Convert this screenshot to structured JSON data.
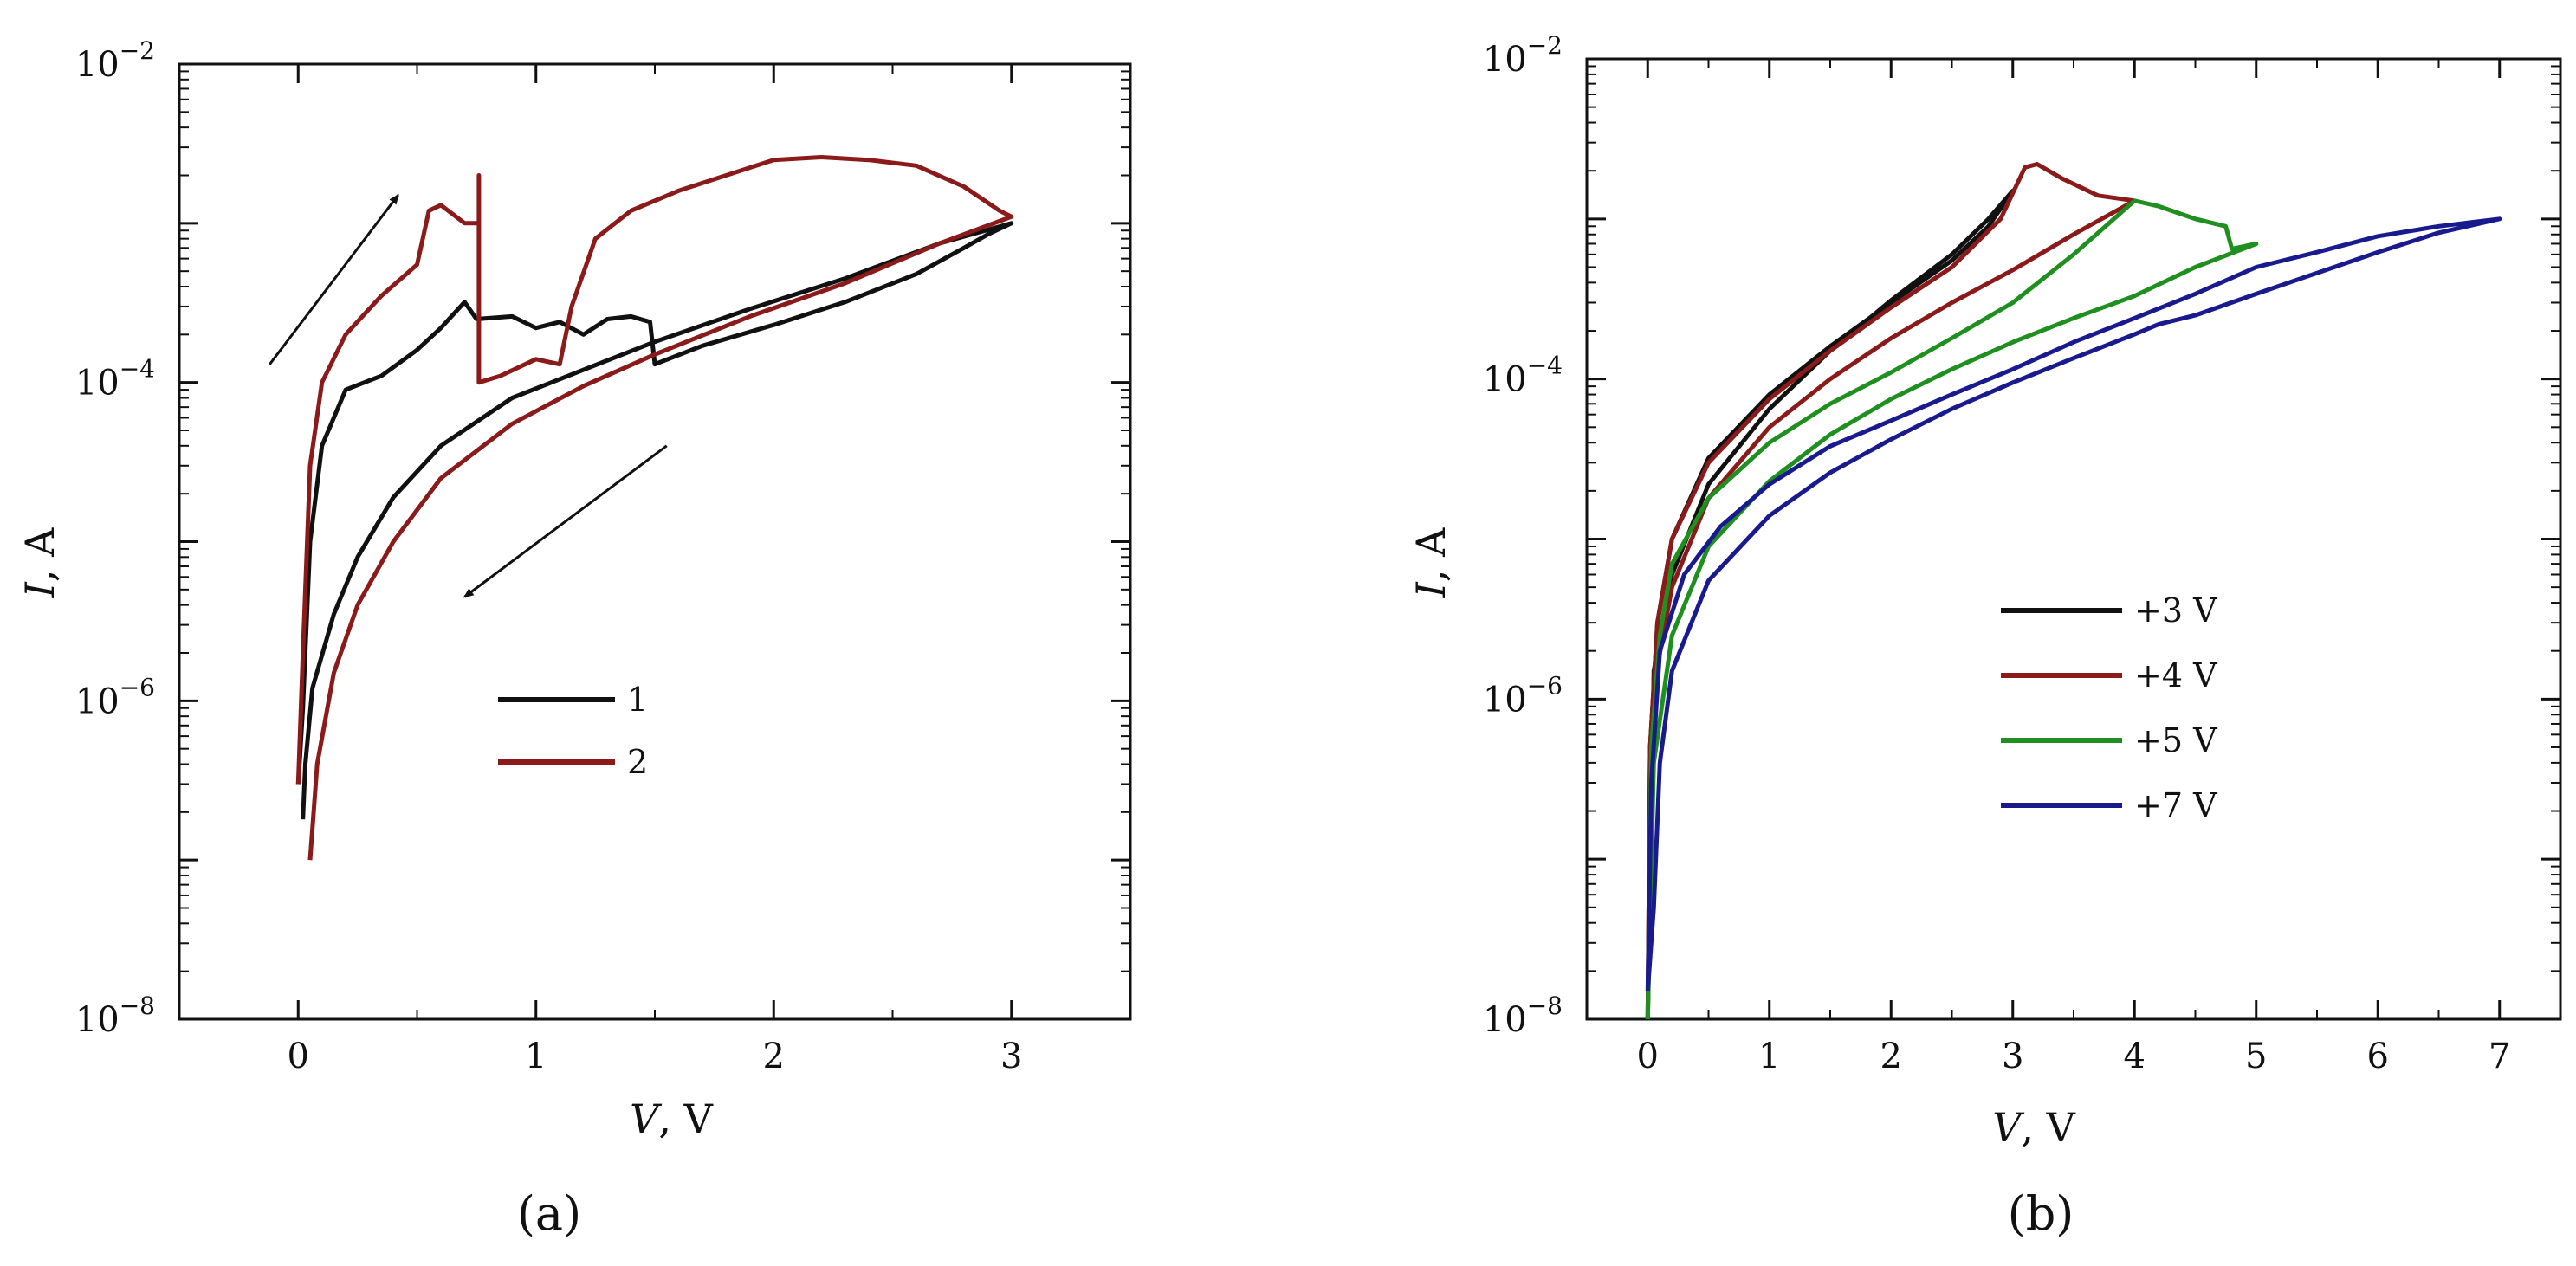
{
  "chart_data": [
    {
      "panel": "a",
      "type": "line",
      "log_y": true,
      "caption": "(a)",
      "xlabel_var": "V",
      "xlabel_unit": ", V",
      "ylabel_var": "I",
      "ylabel_unit": ", A",
      "xlim": [
        -0.5,
        3.5
      ],
      "ylim": [
        1e-08,
        0.01
      ],
      "xticks": [
        0,
        1,
        2,
        3
      ],
      "xtick_labels": [
        "0",
        "1",
        "2",
        "3"
      ],
      "ytick_labels": [
        {
          "value": 1e-08,
          "base": "10",
          "exp": "−8"
        },
        {
          "value": 1e-06,
          "base": "10",
          "exp": "−6"
        },
        {
          "value": 0.0001,
          "base": "10",
          "exp": "−4"
        },
        {
          "value": 0.01,
          "base": "10",
          "exp": "−2"
        }
      ],
      "series": [
        {
          "name": "1",
          "color": "#111111",
          "points": [
            [
              0.0,
              3e-07
            ],
            [
              0.02,
              9e-07
            ],
            [
              0.05,
              1e-05
            ],
            [
              0.1,
              4e-05
            ],
            [
              0.2,
              9e-05
            ],
            [
              0.35,
              0.00011
            ],
            [
              0.5,
              0.00016
            ],
            [
              0.6,
              0.00022
            ],
            [
              0.7,
              0.00032
            ],
            [
              0.75,
              0.00025
            ],
            [
              0.9,
              0.00026
            ],
            [
              1.0,
              0.00022
            ],
            [
              1.1,
              0.00024
            ],
            [
              1.2,
              0.0002
            ],
            [
              1.3,
              0.00025
            ],
            [
              1.4,
              0.00026
            ],
            [
              1.48,
              0.00024
            ],
            [
              1.5,
              0.00013
            ],
            [
              1.7,
              0.00017
            ],
            [
              2.0,
              0.00023
            ],
            [
              2.3,
              0.00032
            ],
            [
              2.6,
              0.00048
            ],
            [
              2.8,
              0.0007
            ],
            [
              2.9,
              0.00085
            ],
            [
              3.0,
              0.001
            ],
            [
              2.7,
              0.00075
            ],
            [
              2.3,
              0.00045
            ],
            [
              1.9,
              0.00029
            ],
            [
              1.5,
              0.00018
            ],
            [
              1.2,
              0.00012
            ],
            [
              0.9,
              8e-05
            ],
            [
              0.6,
              4e-05
            ],
            [
              0.4,
              1.9e-05
            ],
            [
              0.25,
              8e-06
            ],
            [
              0.15,
              3.5e-06
            ],
            [
              0.06,
              1.2e-06
            ],
            [
              0.03,
              4e-07
            ],
            [
              0.02,
              1.8e-07
            ]
          ]
        },
        {
          "name": "2",
          "color": "#8b1a1a",
          "points": [
            [
              0.0,
              3e-07
            ],
            [
              0.02,
              2e-06
            ],
            [
              0.05,
              3e-05
            ],
            [
              0.1,
              0.0001
            ],
            [
              0.2,
              0.0002
            ],
            [
              0.35,
              0.00035
            ],
            [
              0.5,
              0.00055
            ],
            [
              0.55,
              0.0012
            ],
            [
              0.6,
              0.0013
            ],
            [
              0.7,
              0.001
            ],
            [
              0.76,
              0.001
            ],
            [
              0.76,
              0.002
            ],
            [
              0.76,
              0.0001
            ],
            [
              0.85,
              0.00011
            ],
            [
              1.0,
              0.00014
            ],
            [
              1.1,
              0.00013
            ],
            [
              1.15,
              0.0003
            ],
            [
              1.25,
              0.0008
            ],
            [
              1.4,
              0.0012
            ],
            [
              1.6,
              0.0016
            ],
            [
              1.8,
              0.002
            ],
            [
              2.0,
              0.0025
            ],
            [
              2.2,
              0.0026
            ],
            [
              2.4,
              0.0025
            ],
            [
              2.6,
              0.0023
            ],
            [
              2.8,
              0.0017
            ],
            [
              2.95,
              0.0012
            ],
            [
              3.0,
              0.0011
            ],
            [
              2.7,
              0.00075
            ],
            [
              2.3,
              0.00042
            ],
            [
              1.9,
              0.00026
            ],
            [
              1.5,
              0.00015
            ],
            [
              1.2,
              9.5e-05
            ],
            [
              0.9,
              5.5e-05
            ],
            [
              0.6,
              2.5e-05
            ],
            [
              0.4,
              1e-05
            ],
            [
              0.25,
              4e-06
            ],
            [
              0.15,
              1.5e-06
            ],
            [
              0.08,
              4e-07
            ],
            [
              0.05,
              1e-07
            ]
          ]
        }
      ],
      "arrows": [
        {
          "direction": "up",
          "from": [
            -0.12,
            0.00013
          ],
          "to": [
            0.42,
            0.0015
          ]
        },
        {
          "direction": "down",
          "from": [
            1.55,
            4e-05
          ],
          "to": [
            0.7,
            4.5e-06
          ]
        }
      ]
    },
    {
      "panel": "b",
      "type": "line",
      "log_y": true,
      "caption": "(b)",
      "xlabel_var": "V",
      "xlabel_unit": ", V",
      "ylabel_var": "I",
      "ylabel_unit": ", A",
      "xlim": [
        -0.5,
        7.5
      ],
      "ylim": [
        1e-08,
        0.01
      ],
      "xticks": [
        0,
        1,
        2,
        3,
        4,
        5,
        6,
        7
      ],
      "xtick_labels": [
        "0",
        "1",
        "2",
        "3",
        "4",
        "5",
        "6",
        "7"
      ],
      "ytick_labels": [
        {
          "value": 1e-08,
          "base": "10",
          "exp": "−8"
        },
        {
          "value": 1e-06,
          "base": "10",
          "exp": "−6"
        },
        {
          "value": 0.0001,
          "base": "10",
          "exp": "−4"
        },
        {
          "value": 0.01,
          "base": "10",
          "exp": "−2"
        }
      ],
      "series": [
        {
          "name": "+3 V",
          "color": "#111111",
          "points": [
            [
              0.0,
              1e-08
            ],
            [
              0.02,
              5e-07
            ],
            [
              0.08,
              3e-06
            ],
            [
              0.2,
              1e-05
            ],
            [
              0.5,
              3.2e-05
            ],
            [
              1.0,
              8e-05
            ],
            [
              1.5,
              0.00016
            ],
            [
              2.0,
              0.0003
            ],
            [
              2.5,
              0.00055
            ],
            [
              2.8,
              0.0009
            ],
            [
              3.0,
              0.0015
            ],
            [
              2.8,
              0.001
            ],
            [
              2.5,
              0.0006
            ],
            [
              2.0,
              0.00031
            ],
            [
              1.5,
              0.00015
            ],
            [
              1.0,
              6.5e-05
            ],
            [
              0.5,
              2.2e-05
            ],
            [
              0.2,
              6e-06
            ],
            [
              0.05,
              1.5e-06
            ],
            [
              0.0,
              1e-08
            ]
          ]
        },
        {
          "name": "+4 V",
          "color": "#8b1a1a",
          "points": [
            [
              0.0,
              1e-08
            ],
            [
              0.02,
              5e-07
            ],
            [
              0.08,
              3e-06
            ],
            [
              0.2,
              1e-05
            ],
            [
              0.5,
              3e-05
            ],
            [
              1.0,
              7.5e-05
            ],
            [
              1.5,
              0.00015
            ],
            [
              2.0,
              0.00028
            ],
            [
              2.5,
              0.0005
            ],
            [
              2.9,
              0.001
            ],
            [
              3.1,
              0.0021
            ],
            [
              3.2,
              0.0022
            ],
            [
              3.4,
              0.0018
            ],
            [
              3.7,
              0.0014
            ],
            [
              4.0,
              0.0013
            ],
            [
              3.5,
              0.0008
            ],
            [
              3.0,
              0.00048
            ],
            [
              2.5,
              0.0003
            ],
            [
              2.0,
              0.00018
            ],
            [
              1.5,
              0.0001
            ],
            [
              1.0,
              5e-05
            ],
            [
              0.5,
              1.8e-05
            ],
            [
              0.2,
              5e-06
            ],
            [
              0.05,
              1.2e-06
            ],
            [
              0.0,
              1e-08
            ]
          ]
        },
        {
          "name": "+5 V",
          "color": "#1f8f1f",
          "points": [
            [
              0.0,
              1e-08
            ],
            [
              0.03,
              5e-07
            ],
            [
              0.1,
              2.5e-06
            ],
            [
              0.2,
              7e-06
            ],
            [
              0.5,
              1.8e-05
            ],
            [
              1.0,
              4e-05
            ],
            [
              1.5,
              7e-05
            ],
            [
              2.0,
              0.00011
            ],
            [
              2.5,
              0.00018
            ],
            [
              3.0,
              0.0003
            ],
            [
              3.5,
              0.0006
            ],
            [
              4.0,
              0.0013
            ],
            [
              4.2,
              0.0012
            ],
            [
              4.5,
              0.001
            ],
            [
              4.75,
              0.0009
            ],
            [
              4.8,
              0.00065
            ],
            [
              5.0,
              0.0007
            ],
            [
              4.5,
              0.0005
            ],
            [
              4.0,
              0.00033
            ],
            [
              3.5,
              0.00024
            ],
            [
              3.0,
              0.00017
            ],
            [
              2.5,
              0.000115
            ],
            [
              2.0,
              7.5e-05
            ],
            [
              1.5,
              4.5e-05
            ],
            [
              1.0,
              2.3e-05
            ],
            [
              0.5,
              9e-06
            ],
            [
              0.2,
              2.5e-06
            ],
            [
              0.05,
              4e-07
            ],
            [
              0.0,
              1e-08
            ]
          ]
        },
        {
          "name": "+7 V",
          "color": "#1a1a8f",
          "points": [
            [
              0.0,
              1.5e-08
            ],
            [
              0.03,
              3e-07
            ],
            [
              0.1,
              2e-06
            ],
            [
              0.3,
              6e-06
            ],
            [
              0.6,
              1.2e-05
            ],
            [
              1.0,
              2.2e-05
            ],
            [
              1.5,
              3.8e-05
            ],
            [
              2.0,
              5.5e-05
            ],
            [
              2.5,
              8e-05
            ],
            [
              3.0,
              0.000115
            ],
            [
              3.5,
              0.00017
            ],
            [
              4.0,
              0.00024
            ],
            [
              4.5,
              0.00034
            ],
            [
              5.0,
              0.0005
            ],
            [
              5.5,
              0.00062
            ],
            [
              6.0,
              0.00078
            ],
            [
              6.5,
              0.0009
            ],
            [
              7.0,
              0.001
            ],
            [
              6.5,
              0.00082
            ],
            [
              6.0,
              0.00062
            ],
            [
              5.5,
              0.00046
            ],
            [
              5.0,
              0.00034
            ],
            [
              4.5,
              0.00025
            ],
            [
              4.2,
              0.00022
            ],
            [
              4.0,
              0.00019
            ],
            [
              3.5,
              0.000135
            ],
            [
              3.0,
              9.5e-05
            ],
            [
              2.5,
              6.5e-05
            ],
            [
              2.0,
              4.2e-05
            ],
            [
              1.5,
              2.6e-05
            ],
            [
              1.0,
              1.4e-05
            ],
            [
              0.5,
              5.5e-06
            ],
            [
              0.2,
              1.5e-06
            ],
            [
              0.1,
              4e-07
            ],
            [
              0.05,
              5e-08
            ],
            [
              0.0,
              1.5e-08
            ]
          ]
        }
      ]
    }
  ]
}
